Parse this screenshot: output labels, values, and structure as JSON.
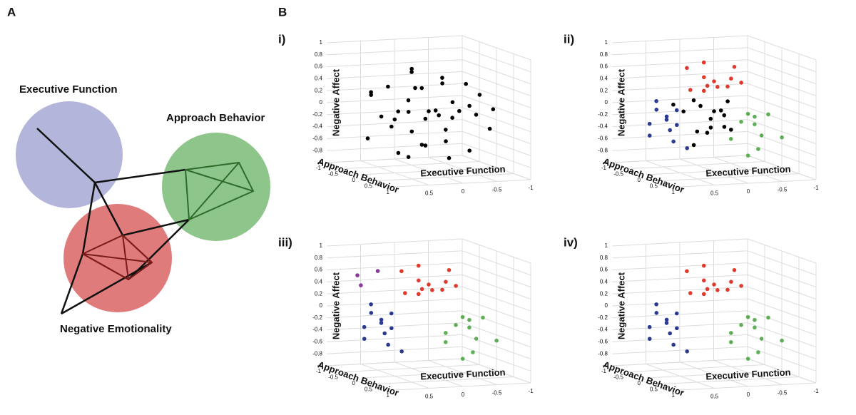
{
  "panel_a": {
    "label": "A",
    "clusters": [
      {
        "label": "Executive Function"
      },
      {
        "label": "Approach Behavior"
      },
      {
        "label": "Negative Emotionality"
      }
    ]
  },
  "panel_b": {
    "label": "B",
    "plots": [
      {
        "label": "i)",
        "z_label": "Negative Affect",
        "x_label": "Executive Function",
        "y_label": "Approach Behavior",
        "z_ticks": [
          -1,
          -0.8,
          -0.6,
          -0.4,
          -0.2,
          0,
          0.2,
          0.4,
          0.6,
          0.8,
          1
        ],
        "x_ticks": [
          -1,
          -0.5,
          0,
          0.5
        ],
        "y_ticks": [
          -1,
          -0.5,
          0,
          0.5,
          1
        ],
        "series": [
          {
            "color": "#000000",
            "points": [
              [
                0.3,
                0,
                0.2
              ],
              [
                0,
                0,
                0
              ],
              [
                -0.2,
                0.1,
                -0.3
              ],
              [
                0.5,
                -0.2,
                0.4
              ],
              [
                -0.5,
                0.2,
                0.1
              ],
              [
                0.2,
                0.3,
                -0.5
              ],
              [
                -0.3,
                -0.2,
                0.5
              ],
              [
                0.6,
                0.1,
                -0.2
              ],
              [
                -0.7,
                0,
                -0.1
              ],
              [
                0.1,
                -0.3,
                0.6
              ],
              [
                0.8,
                0.2,
                0
              ],
              [
                -0.4,
                0.4,
                -0.6
              ],
              [
                0.4,
                0.2,
                -0.7
              ],
              [
                -0.1,
                -0.4,
                0.3
              ],
              [
                0.7,
                -0.3,
                0.3
              ],
              [
                -0.6,
                -0.1,
                0.4
              ],
              [
                0,
                0.5,
                -0.4
              ],
              [
                0.9,
                0,
                -0.4
              ],
              [
                -0.8,
                0.2,
                -0.3
              ],
              [
                0.2,
                -0.1,
                0.7
              ],
              [
                -0.2,
                0.3,
                0.2
              ],
              [
                0.5,
                0.4,
                0.1
              ],
              [
                -0.3,
                0,
                -0.8
              ],
              [
                0.1,
                0.1,
                -0.1
              ],
              [
                0.3,
                -0.4,
                -0.2
              ],
              [
                -0.5,
                -0.3,
                -0.2
              ],
              [
                0.6,
                0.3,
                -0.6
              ],
              [
                -0.1,
                0.2,
                0.5
              ],
              [
                0.4,
                -0.1,
                0
              ],
              [
                -0.4,
                0.1,
                0
              ],
              [
                0,
                -0.2,
                -0.6
              ],
              [
                0.2,
                0,
                0.4
              ],
              [
                -0.6,
                0.3,
                0.3
              ],
              [
                0.8,
                -0.1,
                0.3
              ],
              [
                -0.2,
                -0.1,
                -0.1
              ],
              [
                0.1,
                0.4,
                0.1
              ],
              [
                -0.9,
                0.1,
                0
              ],
              [
                0.3,
                0.1,
                -0.3
              ]
            ]
          }
        ]
      },
      {
        "label": "ii)",
        "z_label": "Negative Affect",
        "x_label": "Executive Function",
        "y_label": "Approach Behavior",
        "z_ticks": [
          -1,
          -0.8,
          -0.6,
          -0.4,
          -0.2,
          0,
          0.2,
          0.4,
          0.6,
          0.8,
          1
        ],
        "x_ticks": [
          -1,
          -0.5,
          0,
          0.5
        ],
        "y_ticks": [
          -1,
          -0.5,
          0,
          0.5,
          1
        ],
        "series": [
          {
            "color": "#e03a2f",
            "points": [
              [
                0,
                0,
                0.5
              ],
              [
                0.2,
                0.1,
                0.6
              ],
              [
                -0.2,
                0,
                0.4
              ],
              [
                0.3,
                -0.2,
                0.7
              ],
              [
                -0.3,
                0.2,
                0.5
              ],
              [
                0.1,
                -0.1,
                0.8
              ],
              [
                0.4,
                0.1,
                0.4
              ],
              [
                -0.1,
                0.3,
                0.6
              ],
              [
                0.15,
                0,
                0.35
              ],
              [
                -0.35,
                -0.1,
                0.7
              ],
              [
                0.05,
                0.2,
                0.45
              ],
              [
                0.25,
                0.3,
                0.5
              ]
            ]
          },
          {
            "color": "#2b3a8f",
            "points": [
              [
                0.7,
                0,
                -0.1
              ],
              [
                0.8,
                0.2,
                0
              ],
              [
                0.6,
                -0.1,
                -0.3
              ],
              [
                0.9,
                0.1,
                0.1
              ],
              [
                0.75,
                0.3,
                -0.4
              ],
              [
                0.55,
                0,
                0.05
              ],
              [
                0.85,
                -0.2,
                -0.2
              ],
              [
                0.65,
                0.2,
                -0.15
              ],
              [
                0.95,
                0,
                -0.35
              ],
              [
                0.7,
                -0.3,
                0.15
              ],
              [
                0.6,
                0.4,
                -0.5
              ]
            ]
          },
          {
            "color": "#5fae57",
            "points": [
              [
                -0.4,
                0,
                -0.2
              ],
              [
                -0.6,
                0.2,
                -0.4
              ],
              [
                -0.3,
                -0.1,
                -0.5
              ],
              [
                -0.8,
                0,
                -0.1
              ],
              [
                -0.5,
                0.3,
                -0.6
              ],
              [
                -0.2,
                0.1,
                -0.3
              ],
              [
                -0.7,
                -0.2,
                -0.3
              ],
              [
                -0.45,
                0.1,
                -0.05
              ],
              [
                -0.9,
                0.2,
                -0.45
              ],
              [
                -0.35,
                0.3,
                -0.7
              ],
              [
                -0.65,
                -0.1,
                -0.15
              ]
            ]
          },
          {
            "color": "#000000",
            "points": [
              [
                0.3,
                0,
                0.2
              ],
              [
                0,
                0,
                0
              ],
              [
                -0.2,
                0.1,
                -0.3
              ],
              [
                0.5,
                -0.2,
                0.1
              ],
              [
                0.2,
                0.3,
                -0.2
              ],
              [
                0.1,
                0.1,
                -0.1
              ],
              [
                0.4,
                -0.1,
                0
              ],
              [
                -0.2,
                -0.1,
                -0.1
              ],
              [
                0.1,
                0.4,
                0.1
              ],
              [
                0.3,
                0.1,
                -0.3
              ],
              [
                0,
                -0.2,
                -0.4
              ],
              [
                0.2,
                0,
                0.1
              ],
              [
                -0.1,
                0.2,
                0.2
              ],
              [
                0.4,
                0.2,
                -0.5
              ],
              [
                0,
                0.3,
                -0.2
              ]
            ]
          }
        ]
      },
      {
        "label": "iii)",
        "z_label": "Negative Affect",
        "x_label": "Executive Function",
        "y_label": "Approach Behavior",
        "z_ticks": [
          -1,
          -0.8,
          -0.6,
          -0.4,
          -0.2,
          0,
          0.2,
          0.4,
          0.6,
          0.8,
          1
        ],
        "x_ticks": [
          -1,
          -0.5,
          0,
          0.5
        ],
        "y_ticks": [
          -1,
          -0.5,
          0,
          0.5,
          1
        ],
        "series": [
          {
            "color": "#e03a2f",
            "points": [
              [
                0,
                0,
                0.5
              ],
              [
                0.2,
                0.1,
                0.6
              ],
              [
                -0.2,
                0,
                0.4
              ],
              [
                0.3,
                -0.2,
                0.7
              ],
              [
                -0.3,
                0.2,
                0.5
              ],
              [
                0.1,
                -0.1,
                0.8
              ],
              [
                0.4,
                0.1,
                0.4
              ],
              [
                -0.1,
                0.3,
                0.6
              ],
              [
                0.15,
                0,
                0.35
              ],
              [
                -0.35,
                -0.1,
                0.7
              ],
              [
                0.05,
                0.2,
                0.45
              ],
              [
                0.25,
                0.3,
                0.5
              ]
            ]
          },
          {
            "color": "#2b3a8f",
            "points": [
              [
                0.7,
                0,
                -0.1
              ],
              [
                0.8,
                0.2,
                0
              ],
              [
                0.6,
                -0.1,
                -0.3
              ],
              [
                0.9,
                0.1,
                0.1
              ],
              [
                0.75,
                0.3,
                -0.4
              ],
              [
                0.55,
                0,
                0.05
              ],
              [
                0.85,
                -0.2,
                -0.2
              ],
              [
                0.65,
                0.2,
                -0.15
              ],
              [
                0.95,
                0,
                -0.35
              ],
              [
                0.7,
                -0.3,
                0.15
              ],
              [
                0.6,
                0.4,
                -0.5
              ]
            ]
          },
          {
            "color": "#5fae57",
            "points": [
              [
                -0.4,
                0,
                -0.2
              ],
              [
                -0.6,
                0.2,
                -0.4
              ],
              [
                -0.3,
                -0.1,
                -0.5
              ],
              [
                -0.8,
                0,
                -0.1
              ],
              [
                -0.5,
                0.3,
                -0.6
              ],
              [
                -0.2,
                0.1,
                -0.3
              ],
              [
                -0.7,
                -0.2,
                -0.3
              ],
              [
                -0.45,
                0.1,
                -0.05
              ],
              [
                -0.9,
                0.2,
                -0.45
              ],
              [
                -0.35,
                0.3,
                -0.7
              ],
              [
                -0.65,
                -0.1,
                -0.15
              ]
            ]
          },
          {
            "color": "#8a3a9e",
            "points": [
              [
                0.8,
                -0.5,
                0.6
              ],
              [
                0.6,
                -0.3,
                0.7
              ],
              [
                0.9,
                -0.2,
                0.5
              ]
            ]
          }
        ]
      },
      {
        "label": "iv)",
        "z_label": "Negative Affect",
        "x_label": "Executive Function",
        "y_label": "Approach Behavior",
        "z_ticks": [
          -1,
          -0.8,
          -0.6,
          -0.4,
          -0.2,
          0,
          0.2,
          0.4,
          0.6,
          0.8,
          1
        ],
        "x_ticks": [
          -1,
          -0.5,
          0,
          0.5
        ],
        "y_ticks": [
          -1,
          -0.5,
          0,
          0.5,
          1
        ],
        "series": [
          {
            "color": "#e03a2f",
            "points": [
              [
                0,
                0,
                0.5
              ],
              [
                0.2,
                0.1,
                0.6
              ],
              [
                -0.2,
                0,
                0.4
              ],
              [
                0.3,
                -0.2,
                0.7
              ],
              [
                -0.3,
                0.2,
                0.5
              ],
              [
                0.1,
                -0.1,
                0.8
              ],
              [
                0.4,
                0.1,
                0.4
              ],
              [
                -0.1,
                0.3,
                0.6
              ],
              [
                0.15,
                0,
                0.35
              ],
              [
                -0.35,
                -0.1,
                0.7
              ],
              [
                0.05,
                0.2,
                0.45
              ],
              [
                0.25,
                0.3,
                0.5
              ]
            ]
          },
          {
            "color": "#2b3a8f",
            "points": [
              [
                0.7,
                0,
                -0.1
              ],
              [
                0.8,
                0.2,
                0
              ],
              [
                0.6,
                -0.1,
                -0.3
              ],
              [
                0.9,
                0.1,
                0.1
              ],
              [
                0.75,
                0.3,
                -0.4
              ],
              [
                0.55,
                0,
                0.05
              ],
              [
                0.85,
                -0.2,
                -0.2
              ],
              [
                0.65,
                0.2,
                -0.15
              ],
              [
                0.95,
                0,
                -0.35
              ],
              [
                0.7,
                -0.3,
                0.15
              ],
              [
                0.6,
                0.4,
                -0.5
              ]
            ]
          },
          {
            "color": "#5fae57",
            "points": [
              [
                -0.4,
                0,
                -0.2
              ],
              [
                -0.6,
                0.2,
                -0.4
              ],
              [
                -0.3,
                -0.1,
                -0.5
              ],
              [
                -0.8,
                0,
                -0.1
              ],
              [
                -0.5,
                0.3,
                -0.6
              ],
              [
                -0.2,
                0.1,
                -0.3
              ],
              [
                -0.7,
                -0.2,
                -0.3
              ],
              [
                -0.45,
                0.1,
                -0.05
              ],
              [
                -0.9,
                0.2,
                -0.45
              ],
              [
                -0.35,
                0.3,
                -0.7
              ],
              [
                -0.65,
                -0.1,
                -0.15
              ]
            ]
          }
        ]
      }
    ]
  }
}
